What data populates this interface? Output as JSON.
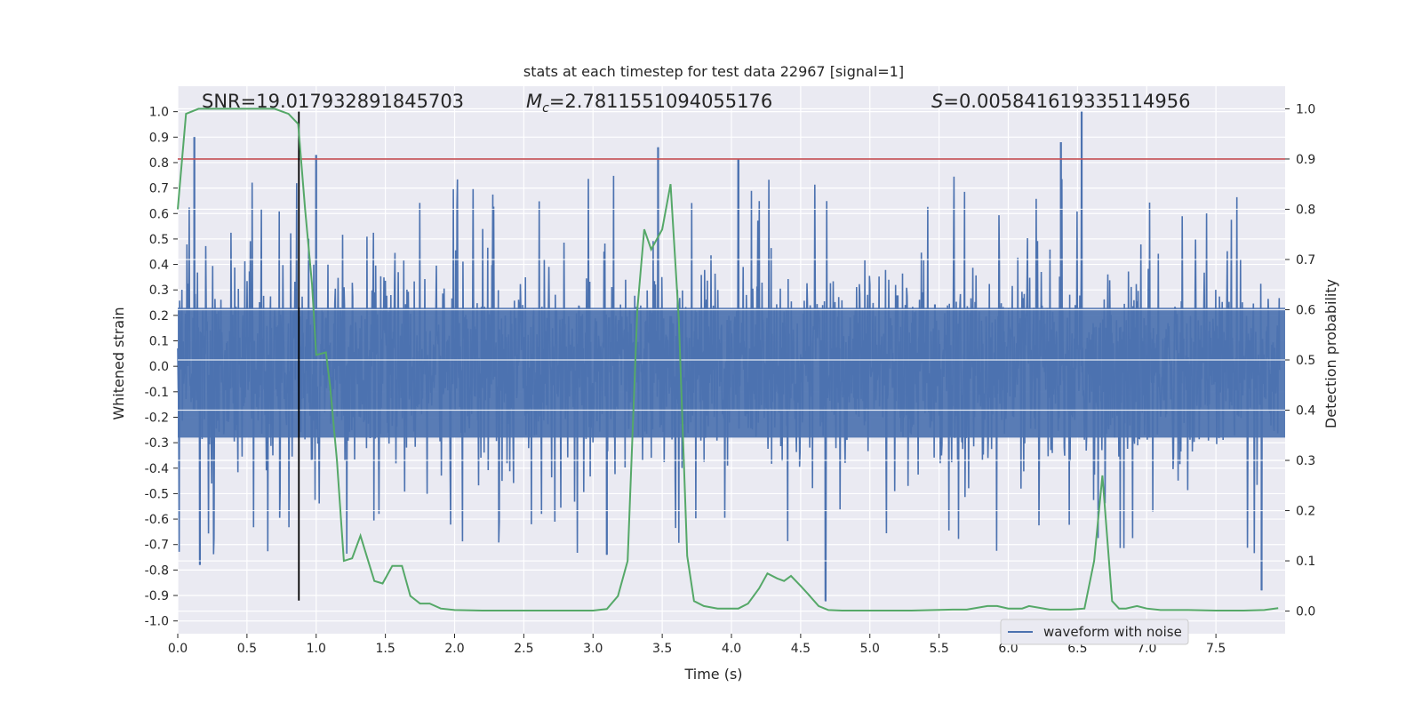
{
  "chart_data": {
    "type": "line",
    "title": "stats at each timestep for test data 22967 [signal=1]",
    "xlabel": "Time (s)",
    "ylabel": "Whitened strain",
    "ylabel_right": "Detection probability",
    "xlim": [
      0.0,
      8.0
    ],
    "ylim": [
      -1.05,
      1.1
    ],
    "ylim_right": [
      -0.045,
      1.045
    ],
    "x_ticks": [
      "0.0",
      "0.5",
      "1.0",
      "1.5",
      "2.0",
      "2.5",
      "3.0",
      "3.5",
      "4.0",
      "4.5",
      "5.0",
      "5.5",
      "6.0",
      "6.5",
      "7.0",
      "7.5"
    ],
    "y_ticks": [
      "-1.0",
      "-0.9",
      "-0.8",
      "-0.7",
      "-0.6",
      "-0.5",
      "-0.4",
      "-0.3",
      "-0.2",
      "-0.1",
      "0.0",
      "0.1",
      "0.2",
      "0.3",
      "0.4",
      "0.5",
      "0.6",
      "0.7",
      "0.8",
      "0.9",
      "1.0"
    ],
    "y_ticks_right": [
      "0.0",
      "0.1",
      "0.2",
      "0.3",
      "0.4",
      "0.5",
      "0.6",
      "0.7",
      "0.8",
      "0.9",
      "1.0"
    ],
    "grid": true,
    "annotations": {
      "snr": "SNR=19.017932891845703",
      "mc_symbol": "M",
      "mc_sub": "c",
      "mc_value": "=2.7811551094055176",
      "s_symbol": "S",
      "s_value": "=0.005841619335114956"
    },
    "threshold": {
      "value": 0.9,
      "axis": "right",
      "color": "#c44e52"
    },
    "marker": {
      "x": 0.875,
      "y_from": -0.92,
      "y_to": 1.0,
      "color": "#000000"
    },
    "series": [
      {
        "name": "waveform with noise",
        "axis": "left",
        "color": "#4c72b0",
        "kind": "noise",
        "baseline_amplitude": 0.32,
        "peaks": [
          {
            "x": 0.12,
            "y": 0.9
          },
          {
            "x": 0.16,
            "y": -0.78
          },
          {
            "x": 1.0,
            "y": 0.83
          },
          {
            "x": 3.47,
            "y": 0.86
          },
          {
            "x": 4.05,
            "y": 0.81
          },
          {
            "x": 6.38,
            "y": 0.88
          },
          {
            "x": 6.53,
            "y": 1.0
          },
          {
            "x": 7.83,
            "y": -0.88
          },
          {
            "x": 4.68,
            "y": -0.92
          },
          {
            "x": 3.1,
            "y": -0.74
          }
        ]
      },
      {
        "name": "",
        "axis": "right",
        "color": "#55a868",
        "kind": "line",
        "x": [
          0.0,
          0.06,
          0.15,
          0.3,
          0.5,
          0.7,
          0.8,
          0.87,
          0.92,
          0.97,
          1.0,
          1.07,
          1.1,
          1.15,
          1.2,
          1.26,
          1.32,
          1.42,
          1.48,
          1.55,
          1.62,
          1.68,
          1.75,
          1.82,
          1.9,
          2.0,
          2.2,
          2.5,
          2.8,
          3.0,
          3.1,
          3.18,
          3.25,
          3.32,
          3.37,
          3.42,
          3.5,
          3.56,
          3.62,
          3.68,
          3.73,
          3.8,
          3.9,
          3.98,
          4.05,
          4.12,
          4.2,
          4.26,
          4.33,
          4.38,
          4.43,
          4.5,
          4.55,
          4.63,
          4.7,
          4.8,
          5.0,
          5.3,
          5.6,
          5.7,
          5.85,
          5.92,
          6.0,
          6.1,
          6.15,
          6.3,
          6.45,
          6.55,
          6.62,
          6.68,
          6.75,
          6.8,
          6.85,
          6.93,
          7.0,
          7.1,
          7.3,
          7.5,
          7.7,
          7.85,
          7.95
        ],
        "y": [
          0.8,
          0.99,
          1.0,
          1.0,
          1.0,
          1.0,
          0.99,
          0.97,
          0.8,
          0.65,
          0.51,
          0.515,
          0.45,
          0.3,
          0.1,
          0.105,
          0.15,
          0.06,
          0.055,
          0.09,
          0.09,
          0.03,
          0.015,
          0.015,
          0.005,
          0.002,
          0.001,
          0.001,
          0.001,
          0.001,
          0.004,
          0.03,
          0.1,
          0.6,
          0.76,
          0.72,
          0.76,
          0.85,
          0.58,
          0.11,
          0.02,
          0.01,
          0.005,
          0.005,
          0.005,
          0.015,
          0.045,
          0.075,
          0.065,
          0.06,
          0.07,
          0.05,
          0.035,
          0.01,
          0.002,
          0.001,
          0.001,
          0.001,
          0.003,
          0.003,
          0.01,
          0.01,
          0.005,
          0.005,
          0.01,
          0.003,
          0.003,
          0.005,
          0.1,
          0.27,
          0.02,
          0.005,
          0.005,
          0.01,
          0.005,
          0.002,
          0.002,
          0.001,
          0.001,
          0.002,
          0.006
        ]
      }
    ],
    "legend": {
      "position": "lower-right",
      "entries": [
        "waveform with noise"
      ]
    }
  },
  "colors": {
    "plot_background": "#eaeaf2",
    "grid": "#ffffff",
    "text": "#262626"
  }
}
